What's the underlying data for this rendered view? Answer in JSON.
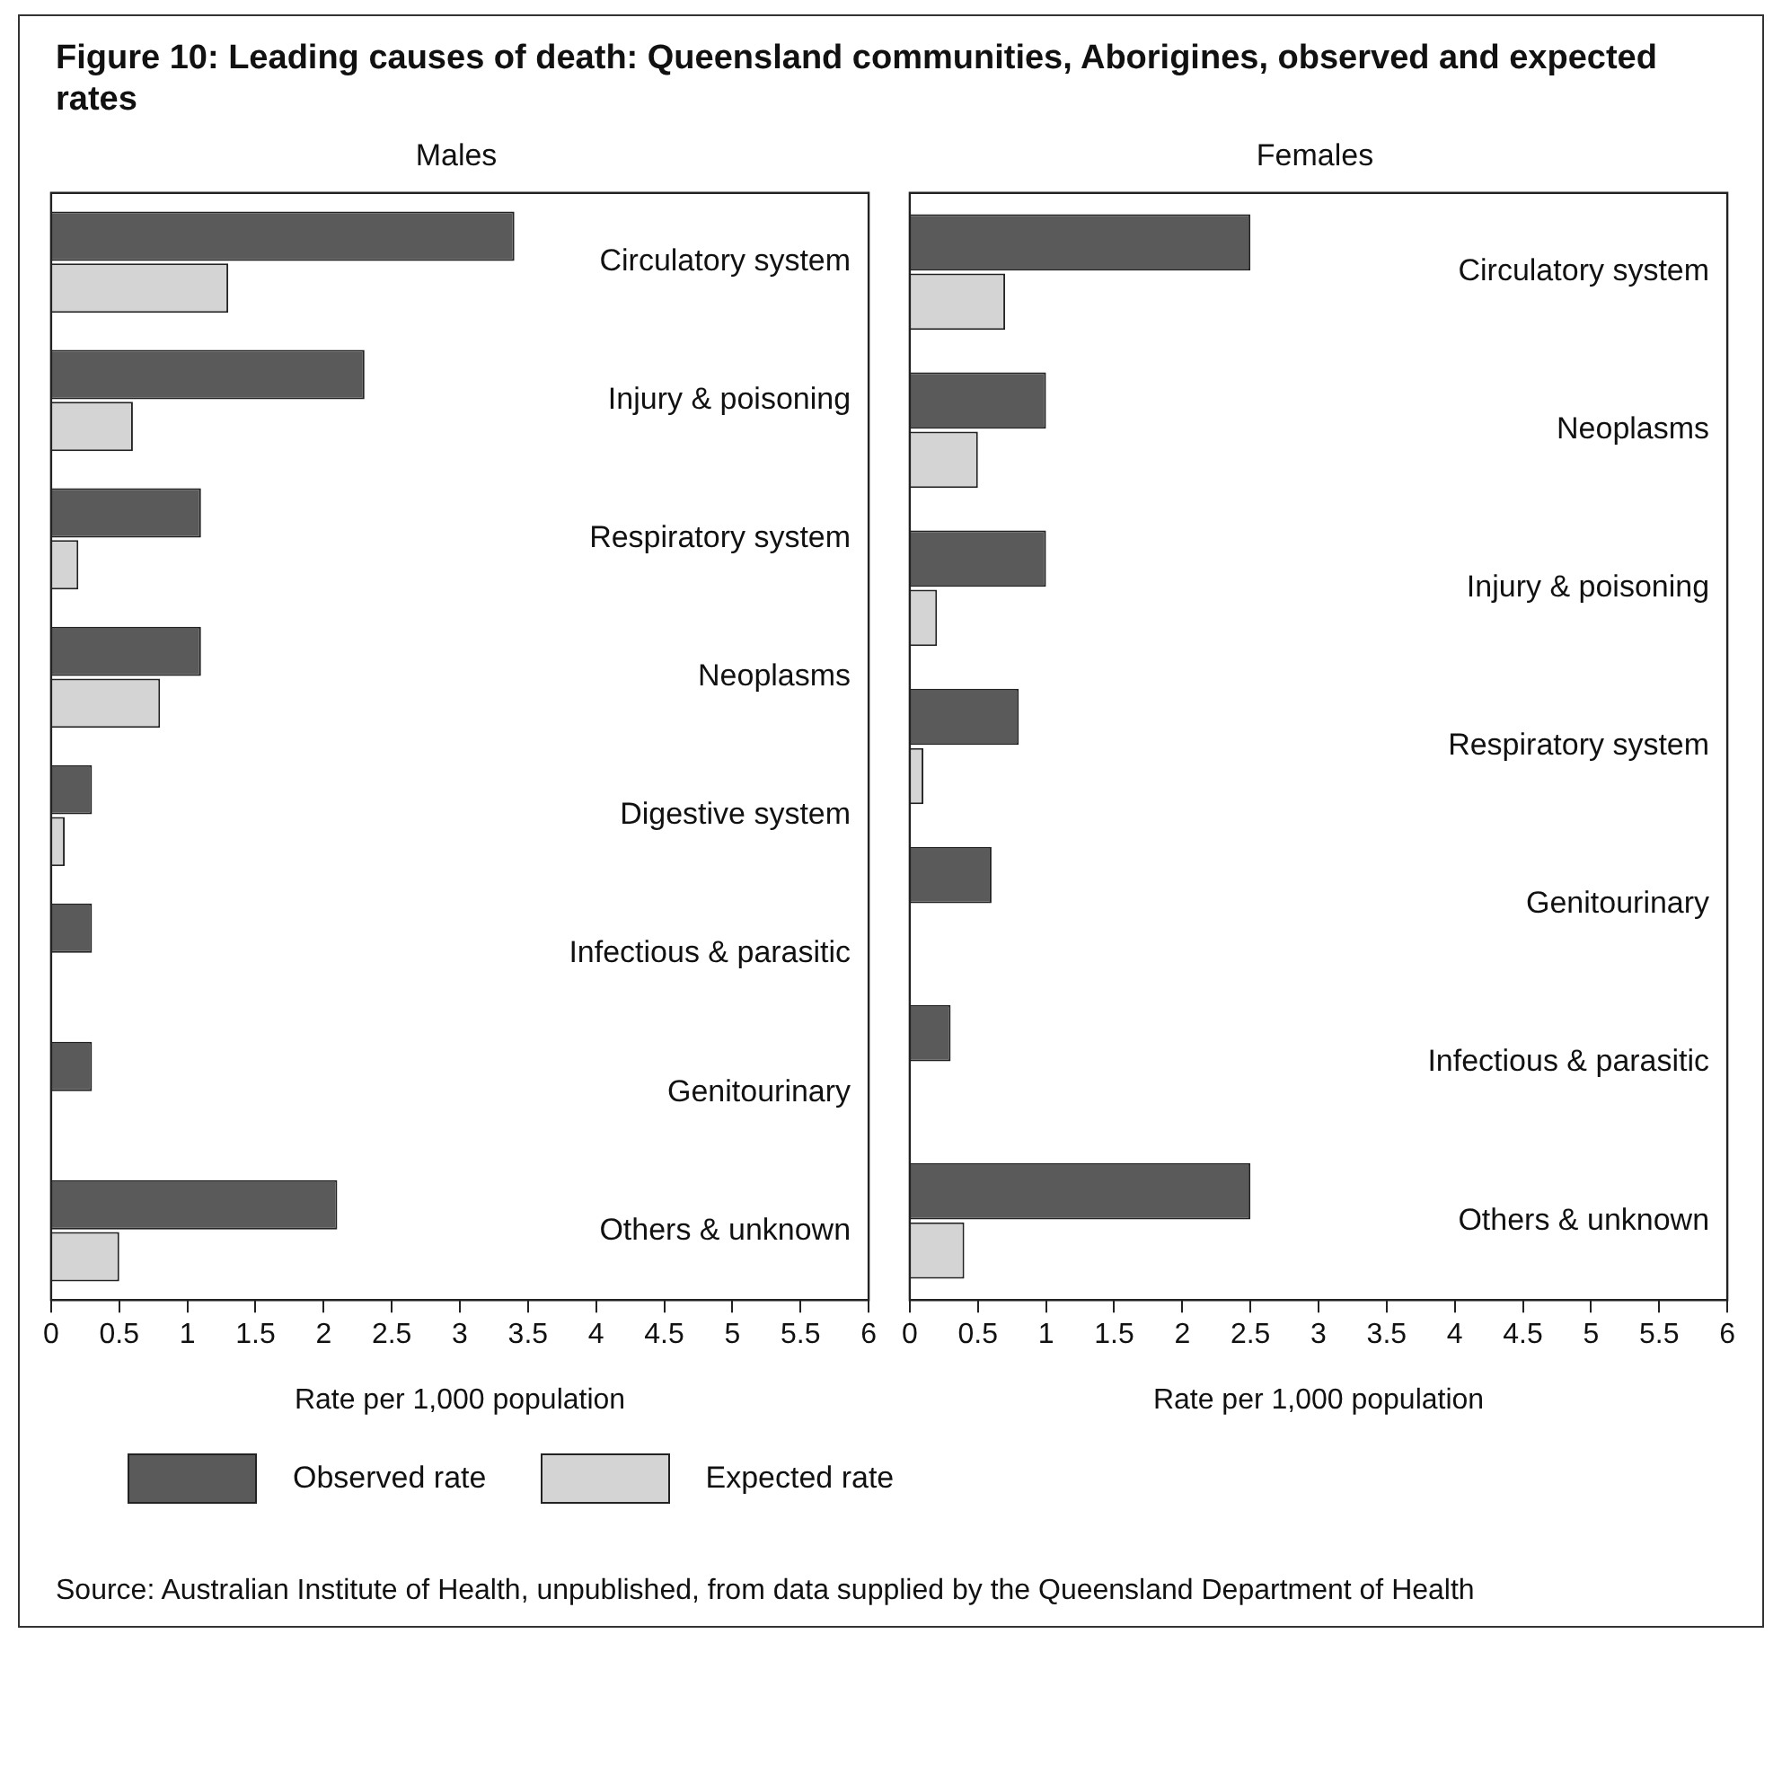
{
  "chart_data": [
    {
      "type": "bar",
      "orientation": "horizontal",
      "title": "Figure 10: Leading causes of death: Queensland communities, Aborigines, observed and expected rates",
      "subtitle": "Males",
      "xlabel": "Rate per 1,000 population",
      "categories": [
        "Circulatory system",
        "Injury & poisoning",
        "Respiratory system",
        "Neoplasms",
        "Digestive system",
        "Infectious & parasitic",
        "Genitourinary",
        "Others & unknown"
      ],
      "series": [
        {
          "name": "Observed rate",
          "color": "#5a5a5a",
          "values": [
            3.4,
            2.3,
            1.1,
            1.1,
            0.3,
            0.3,
            0.3,
            2.1
          ]
        },
        {
          "name": "Expected rate",
          "color": "#d4d4d4",
          "values": [
            1.3,
            0.6,
            0.2,
            0.8,
            0.1,
            null,
            null,
            0.5
          ]
        }
      ],
      "xlim": [
        0,
        6
      ],
      "xticks": [
        0,
        0.5,
        1,
        1.5,
        2,
        2.5,
        3,
        3.5,
        4,
        4.5,
        5,
        5.5,
        6
      ],
      "grid": false,
      "legend": "bottom"
    },
    {
      "type": "bar",
      "orientation": "horizontal",
      "subtitle": "Females",
      "xlabel": "Rate per 1,000 population",
      "categories": [
        "Circulatory system",
        "Neoplasms",
        "Injury & poisoning",
        "Respiratory system",
        "Genitourinary",
        "Infectious & parasitic",
        "Others & unknown"
      ],
      "series": [
        {
          "color": "#5a5a5a",
          "values": [
            2.5,
            1.0,
            1.0,
            0.8,
            0.6,
            0.3,
            2.5
          ]
        },
        {
          "color": "#d4d4d4",
          "values": [
            0.7,
            0.5,
            0.2,
            0.1,
            null,
            null,
            0.4
          ]
        }
      ],
      "xlim": [
        0,
        6
      ],
      "xticks": [
        0,
        0.5,
        1,
        1.5,
        2,
        2.5,
        3,
        3.5,
        4,
        4.5,
        5,
        5.5,
        6
      ],
      "grid": false,
      "annotations": [
        "Source: Australian Institute of Health, unpublished, from data supplied by the Queensland Department of Health"
      ]
    }
  ]
}
